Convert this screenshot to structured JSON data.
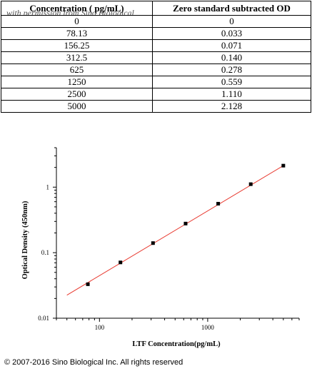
{
  "table": {
    "watermark": "with permission from Sino Biological",
    "headers": [
      "Concentration ( pg/mL)",
      "Zero standard subtracted OD"
    ],
    "rows": [
      [
        "0",
        "0"
      ],
      [
        "78.13",
        "0.033"
      ],
      [
        "156.25",
        "0.071"
      ],
      [
        "312.5",
        "0.140"
      ],
      [
        "625",
        "0.278"
      ],
      [
        "1250",
        "0.559"
      ],
      [
        "2500",
        "1.110"
      ],
      [
        "5000",
        "2.128"
      ]
    ]
  },
  "chart_data": {
    "type": "scatter",
    "xlabel": "LTF  Concentration(pg/mL)",
    "ylabel": "Optical Density (450nm)",
    "xscale": "log",
    "yscale": "log",
    "xlim": [
      40,
      7000
    ],
    "ylim": [
      0.01,
      4
    ],
    "xticks": [
      100,
      1000
    ],
    "xtick_labels": [
      "100",
      "1000"
    ],
    "yticks": [
      0.01,
      0.1,
      1
    ],
    "ytick_labels": [
      "0.01",
      "0.1",
      "1"
    ],
    "series": [
      {
        "x": [
          78.13,
          156.25,
          312.5,
          625,
          1250,
          2500,
          5000
        ],
        "y": [
          0.033,
          0.071,
          0.14,
          0.278,
          0.559,
          1.11,
          2.128
        ],
        "marker_color": "#000000"
      }
    ],
    "fit_line": {
      "x": [
        50,
        5000
      ],
      "y": [
        0.0225,
        2.128
      ],
      "color": "#e8392f"
    },
    "grid": false
  },
  "footer": {
    "copyright": "© 2007-2016 Sino Biological Inc. All rights reserved"
  }
}
